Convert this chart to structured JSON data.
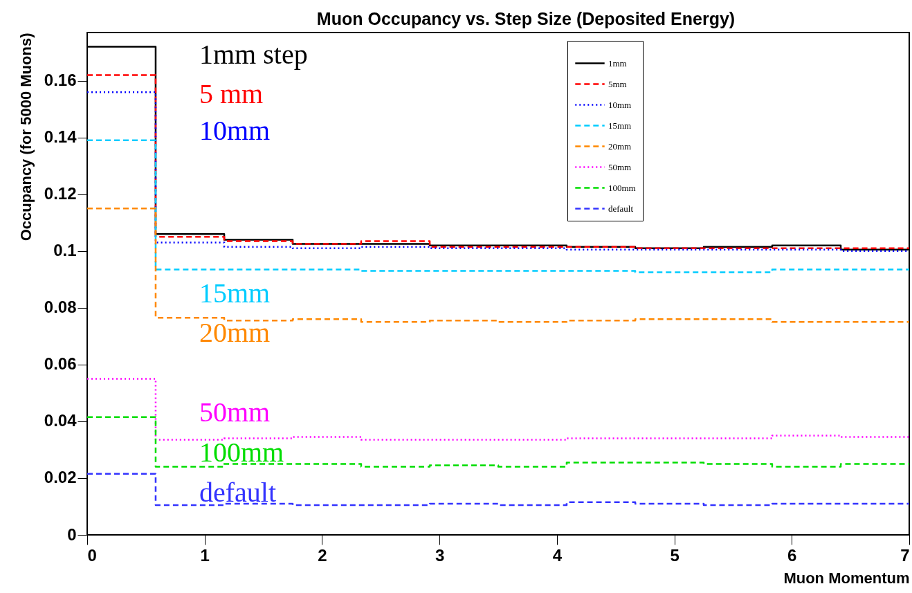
{
  "chart_data": {
    "type": "histogram",
    "title": "Muon Occupancy vs. Step Size (Deposited Energy)",
    "xlabel": "Muon Momentum",
    "ylabel": "Occupancy (for 5000 Muons)",
    "bins": [
      0,
      0.583,
      1.167,
      1.75,
      2.333,
      2.917,
      3.5,
      4.083,
      4.667,
      5.25,
      5.833,
      6.417,
      7
    ],
    "series": [
      {
        "name": "1mm",
        "color": "#000000",
        "line_style": "solid",
        "values": [
          0.172,
          0.106,
          0.104,
          0.1025,
          0.1025,
          0.102,
          0.102,
          0.1015,
          0.101,
          0.1015,
          0.102,
          0.1005
        ]
      },
      {
        "name": "5mm",
        "color": "#ff0000",
        "line_style": "dashed",
        "values": [
          0.162,
          0.105,
          0.1035,
          0.1025,
          0.1035,
          0.1015,
          0.1015,
          0.1015,
          0.101,
          0.101,
          0.101,
          0.101
        ]
      },
      {
        "name": "10mm",
        "color": "#0000ff",
        "line_style": "dotted",
        "values": [
          0.156,
          0.103,
          0.1015,
          0.101,
          0.1015,
          0.101,
          0.101,
          0.1005,
          0.1005,
          0.1005,
          0.1005,
          0.1
        ]
      },
      {
        "name": "15mm",
        "color": "#00ccff",
        "line_style": "dashed",
        "values": [
          0.139,
          0.0935,
          0.0935,
          0.0935,
          0.093,
          0.093,
          0.093,
          0.093,
          0.0925,
          0.0925,
          0.0935,
          0.0935
        ]
      },
      {
        "name": "20mm",
        "color": "#ff8800",
        "line_style": "dashed",
        "values": [
          0.115,
          0.0765,
          0.0755,
          0.076,
          0.075,
          0.0755,
          0.075,
          0.0755,
          0.076,
          0.076,
          0.075,
          0.075
        ]
      },
      {
        "name": "50mm",
        "color": "#ff00ff",
        "line_style": "dotted",
        "values": [
          0.055,
          0.0335,
          0.034,
          0.0345,
          0.0335,
          0.0335,
          0.0335,
          0.034,
          0.034,
          0.034,
          0.035,
          0.0345
        ]
      },
      {
        "name": "100mm",
        "color": "#00dd00",
        "line_style": "dashed",
        "values": [
          0.0415,
          0.024,
          0.025,
          0.025,
          0.024,
          0.0245,
          0.024,
          0.0255,
          0.0255,
          0.025,
          0.024,
          0.025
        ]
      },
      {
        "name": "default",
        "color": "#3333ff",
        "line_style": "dashed",
        "values": [
          0.0215,
          0.0105,
          0.011,
          0.0105,
          0.0105,
          0.011,
          0.0105,
          0.0115,
          0.011,
          0.0105,
          0.011,
          0.011
        ]
      }
    ],
    "annotations": [
      "1mm step",
      "5 mm",
      "10mm",
      "15mm",
      "20mm",
      "50mm",
      "100mm",
      "default"
    ],
    "xlim": [
      0,
      7
    ],
    "xticks": [
      0,
      1,
      2,
      3,
      4,
      5,
      6,
      7
    ],
    "ylim": [
      0,
      0.177
    ],
    "yticks": [
      0,
      0.02,
      0.04,
      0.06,
      0.08,
      0.1,
      0.12,
      0.14,
      0.16
    ],
    "legend": "top right",
    "grid": false
  }
}
